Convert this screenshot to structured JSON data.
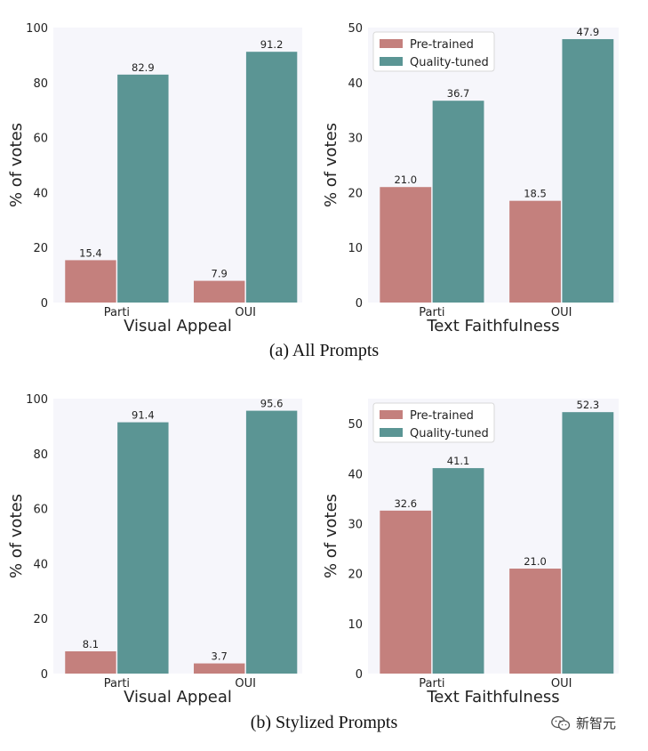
{
  "colors": {
    "pretrained": "#c4807d",
    "quality": "#5b9594",
    "panel_bg": "#f6f6fb"
  },
  "captions": [
    "(a) All Prompts",
    "(b) Stylized Prompts"
  ],
  "watermark": "新智元",
  "chart_data": [
    {
      "type": "bar",
      "categories": [
        "Parti",
        "OUI"
      ],
      "series": [
        {
          "name": "Pre-trained",
          "values": [
            15.4,
            7.9
          ]
        },
        {
          "name": "Quality-tuned",
          "values": [
            82.9,
            91.2
          ]
        }
      ],
      "xlabel": "Visual Appeal",
      "ylabel": "% of votes",
      "ylim": [
        0,
        100
      ],
      "yticks": [
        0,
        20,
        40,
        60,
        80,
        100
      ],
      "legend": false
    },
    {
      "type": "bar",
      "categories": [
        "Parti",
        "OUI"
      ],
      "series": [
        {
          "name": "Pre-trained",
          "values": [
            21.0,
            18.5
          ]
        },
        {
          "name": "Quality-tuned",
          "values": [
            36.7,
            47.9
          ]
        }
      ],
      "xlabel": "Text Faithfulness",
      "ylabel": "% of votes",
      "ylim": [
        0,
        50
      ],
      "yticks": [
        0,
        10,
        20,
        30,
        40,
        50
      ],
      "legend": "top-left"
    },
    {
      "type": "bar",
      "categories": [
        "Parti",
        "OUI"
      ],
      "series": [
        {
          "name": "Pre-trained",
          "values": [
            8.1,
            3.7
          ]
        },
        {
          "name": "Quality-tuned",
          "values": [
            91.4,
            95.6
          ]
        }
      ],
      "xlabel": "Visual Appeal",
      "ylabel": "% of votes",
      "ylim": [
        0,
        100
      ],
      "yticks": [
        0,
        20,
        40,
        60,
        80,
        100
      ],
      "legend": false
    },
    {
      "type": "bar",
      "categories": [
        "Parti",
        "OUI"
      ],
      "series": [
        {
          "name": "Pre-trained",
          "values": [
            32.6,
            21.0
          ]
        },
        {
          "name": "Quality-tuned",
          "values": [
            41.1,
            52.3
          ]
        }
      ],
      "xlabel": "Text Faithfulness",
      "ylabel": "% of votes",
      "ylim": [
        0,
        55
      ],
      "yticks": [
        0,
        10,
        20,
        30,
        40,
        50
      ],
      "legend": "top-left"
    }
  ]
}
